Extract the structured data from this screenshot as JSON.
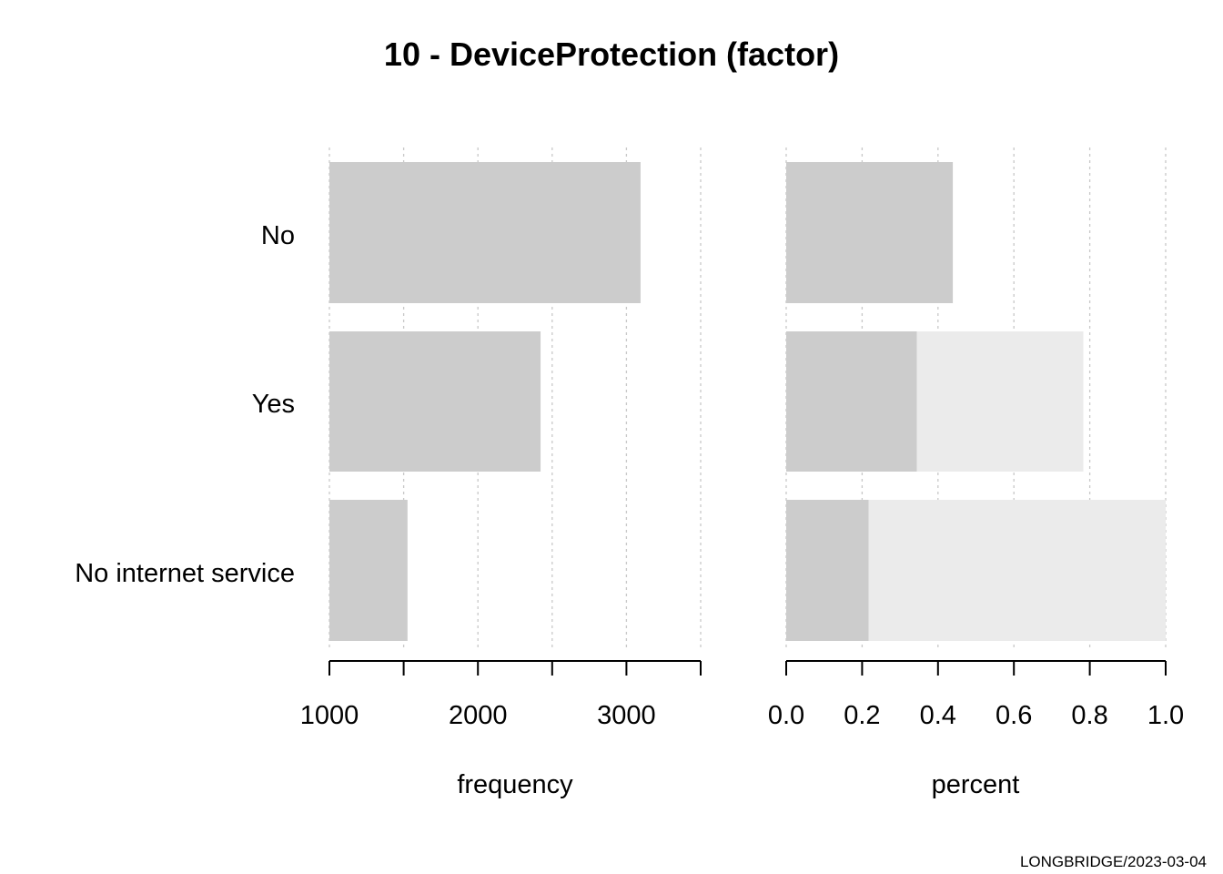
{
  "chart_data": {
    "type": "bar",
    "title": "10 - DeviceProtection (factor)",
    "footer": "LONGBRIDGE/2023-03-04",
    "categories": [
      "No",
      "Yes",
      "No internet service"
    ],
    "colors": {
      "bar": "#cccccc",
      "cumulative": "#ebebeb",
      "grid": "#c8c8c8",
      "axis": "#000000"
    },
    "panels": [
      {
        "id": "frequency",
        "xlabel": "frequency",
        "xlim": [
          1000,
          3500
        ],
        "ticks": [
          1000,
          1500,
          2000,
          2500,
          3000,
          3500
        ],
        "tick_labels": [
          "1000",
          "",
          "2000",
          "",
          "3000",
          ""
        ],
        "values": [
          3095,
          2422,
          1526
        ],
        "grid": true
      },
      {
        "id": "percent",
        "xlabel": "percent",
        "xlim": [
          0,
          1
        ],
        "ticks": [
          0,
          0.2,
          0.4,
          0.6,
          0.8,
          1.0
        ],
        "tick_labels": [
          "0.0",
          "0.2",
          "0.4",
          "0.6",
          "0.8",
          "1.0"
        ],
        "values": [
          0.439,
          0.344,
          0.217
        ],
        "cumulative": [
          0.439,
          0.783,
          1.0
        ],
        "grid": true
      }
    ]
  }
}
